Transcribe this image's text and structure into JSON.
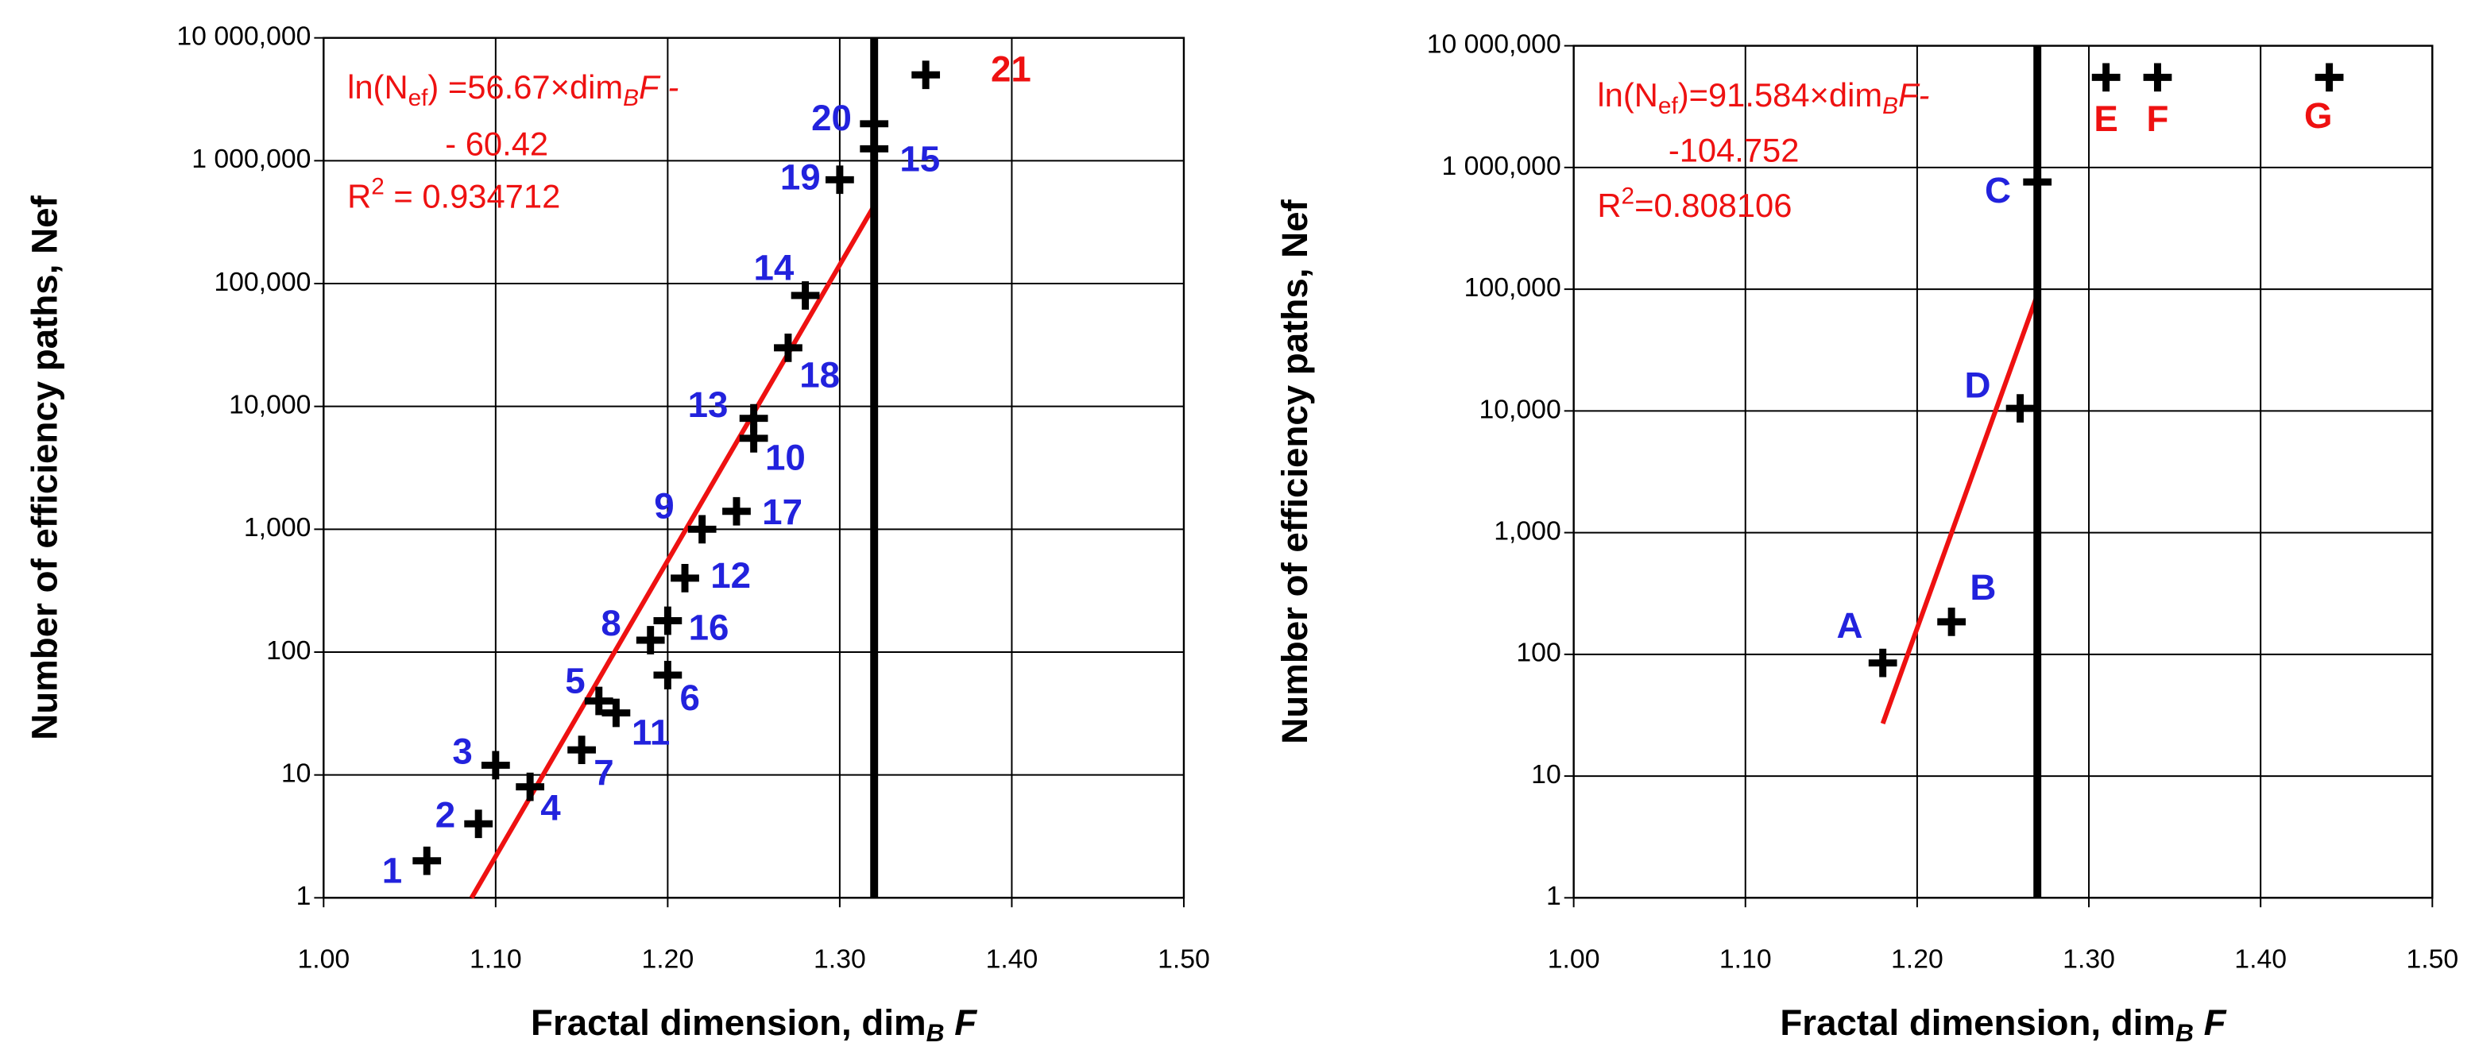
{
  "chart_data": [
    {
      "type": "scatter",
      "ylog": true,
      "grid": true,
      "xlabel": [
        "Fractal dimension, dim",
        "B",
        " F"
      ],
      "ylabel": "Number of efficiency paths, Nef",
      "xlim": [
        1.0,
        1.5
      ],
      "xticks": [
        {
          "value": 1.0,
          "label": "1.00"
        },
        {
          "value": 1.1,
          "label": "1.10"
        },
        {
          "value": 1.2,
          "label": "1.20"
        },
        {
          "value": 1.3,
          "label": "1.30"
        },
        {
          "value": 1.4,
          "label": "1.40"
        },
        {
          "value": 1.5,
          "label": "1.50"
        }
      ],
      "ylim": [
        1,
        10000000
      ],
      "yticks": [
        1,
        10,
        100,
        {
          "value": 1000,
          "label": "1,000"
        },
        {
          "value": 10000,
          "label": "10,000"
        },
        {
          "value": 100000,
          "label": "100,000"
        },
        {
          "value": 1000000,
          "label": "1 000,000"
        },
        {
          "value": 10000000,
          "label": "10 000,000"
        }
      ],
      "color": "#000000",
      "x": [
        1.06,
        1.09,
        1.1,
        1.12,
        1.16,
        1.2,
        1.15,
        1.19,
        1.22,
        1.25,
        1.17,
        1.21,
        1.25,
        1.28,
        1.32,
        1.2,
        1.24,
        1.27,
        1.3,
        1.32,
        1.35
      ],
      "values": [
        2,
        4,
        12,
        8,
        40,
        65,
        16,
        125,
        1000,
        5500,
        32,
        400,
        8000,
        80000,
        1250000,
        180,
        1400,
        30000,
        700000,
        2000000,
        5000000
      ],
      "labels": [
        "1",
        "2",
        "3",
        "4",
        "5",
        "6",
        "7",
        "8",
        "9",
        "10",
        "11",
        "12",
        "13",
        "14",
        "15",
        "16",
        "17",
        "18",
        "19",
        "20",
        "21"
      ],
      "label_colors": [
        "#2222dd",
        "#2222dd",
        "#2222dd",
        "#2222dd",
        "#2222dd",
        "#2222dd",
        "#2222dd",
        "#2222dd",
        "#2222dd",
        "#2222dd",
        "#2222dd",
        "#2222dd",
        "#2222dd",
        "#2222dd",
        "#2222dd",
        "#2222dd",
        "#2222dd",
        "#2222dd",
        "#2222dd",
        "#2222dd",
        "#ee1111"
      ],
      "fit": {
        "x": [
          1.086,
          1.32
        ],
        "values": [
          1,
          430000
        ],
        "color": "#ee1111"
      },
      "vline": 1.32,
      "annotation": {
        "color": "#ee1111",
        "lines": [
          {
            "parts": [
              "ln(N",
              "ef",
              ") =56.67×dim",
              "B",
              "F -"
            ],
            "shift": "sub"
          },
          {
            "parts": [
              "- 60.42"
            ],
            "shift": "sub"
          },
          {
            "parts": [
              "R",
              "2",
              " = 0.934712"
            ],
            "shift": "super"
          }
        ]
      }
    },
    {
      "type": "scatter",
      "ylog": true,
      "grid": true,
      "xlabel": [
        "Fractal dimension, dim",
        "B",
        " F"
      ],
      "ylabel": "Number of efficiency paths, Nef",
      "xlim": [
        1.0,
        1.5
      ],
      "xticks": [
        {
          "value": 1.0,
          "label": "1.00"
        },
        {
          "value": 1.1,
          "label": "1.10"
        },
        {
          "value": 1.2,
          "label": "1.20"
        },
        {
          "value": 1.3,
          "label": "1.30"
        },
        {
          "value": 1.4,
          "label": "1.40"
        },
        {
          "value": 1.5,
          "label": "1.50"
        }
      ],
      "ylim": [
        1,
        10000000
      ],
      "yticks": [
        1,
        10,
        100,
        {
          "value": 1000,
          "label": "1,000"
        },
        {
          "value": 10000,
          "label": "10,000"
        },
        {
          "value": 100000,
          "label": "100,000"
        },
        {
          "value": 1000000,
          "label": "1 000,000"
        },
        {
          "value": 10000000,
          "label": "10 000,000"
        }
      ],
      "color": "#000000",
      "x": [
        1.18,
        1.22,
        1.27,
        1.26,
        1.31,
        1.34,
        1.44
      ],
      "values": [
        85,
        185,
        760000,
        10500,
        5500000,
        5500000,
        5500000
      ],
      "labels": [
        "A",
        "B",
        "C",
        "D",
        "E",
        "F",
        "G"
      ],
      "label_colors": [
        "#2222dd",
        "#2222dd",
        "#2222dd",
        "#2222dd",
        "#ee1111",
        "#ee1111",
        "#ee1111"
      ],
      "fit": {
        "x": [
          1.18,
          1.27
        ],
        "values": [
          27,
          90000
        ],
        "color": "#ee1111"
      },
      "vline": 1.27,
      "annotation": {
        "color": "#ee1111",
        "lines": [
          {
            "parts": [
              "ln(N",
              "ef",
              ")=91.584×dim",
              "B",
              "F-"
            ],
            "shift": "sub"
          },
          {
            "parts": [
              "-104.752"
            ],
            "shift": "sub"
          },
          {
            "parts": [
              "R",
              "2",
              "=0.808106"
            ],
            "shift": "super"
          }
        ]
      }
    }
  ]
}
